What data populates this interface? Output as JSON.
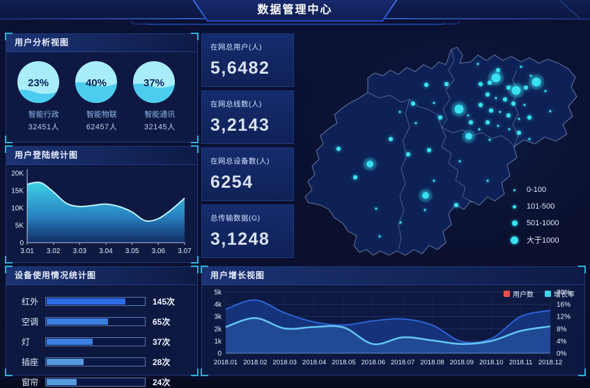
{
  "header": {
    "title": "数据管理中心"
  },
  "panels": {
    "user_analysis": {
      "title": "用户分析视图"
    },
    "login_stats": {
      "title": "用户登陆统计图"
    },
    "device_usage": {
      "title": "设备使用情况统计图"
    },
    "user_growth": {
      "title": "用户增长视图"
    }
  },
  "stats": {
    "items": [
      {
        "label": "在网总用户(人)",
        "value": "5,6482"
      },
      {
        "label": "在网总线数(人)",
        "value": "3,2143"
      },
      {
        "label": "在网总设备数(人)",
        "value": "6254"
      },
      {
        "label": "总传输数据(G)",
        "value": "3,1248"
      }
    ]
  },
  "map": {
    "dot_color": "#39e2f0",
    "land_color": "#0d2156",
    "border_color": "rgba(150,172,212,0.5)",
    "legend": [
      {
        "label": "0-100"
      },
      {
        "label": "101-500"
      },
      {
        "label": "501-1000"
      },
      {
        "label": "大于1000"
      }
    ],
    "dots": [
      [
        282,
        67,
        4
      ],
      [
        311,
        85,
        4
      ],
      [
        340,
        73,
        4
      ],
      [
        229,
        112,
        4
      ],
      [
        243,
        151,
        3
      ],
      [
        101,
        191,
        3
      ],
      [
        181,
        236,
        3
      ],
      [
        211,
        76,
        2
      ],
      [
        182,
        77,
        2
      ],
      [
        163,
        104,
        2
      ],
      [
        202,
        124,
        2
      ],
      [
        270,
        91,
        2
      ],
      [
        295,
        98,
        2
      ],
      [
        307,
        104,
        2
      ],
      [
        260,
        106,
        2
      ],
      [
        275,
        114,
        2
      ],
      [
        300,
        121,
        2
      ],
      [
        330,
        124,
        2
      ],
      [
        270,
        131,
        2
      ],
      [
        315,
        146,
        2
      ],
      [
        285,
        56,
        2
      ],
      [
        260,
        76,
        2
      ],
      [
        273,
        74,
        2
      ],
      [
        300,
        81,
        2
      ],
      [
        325,
        81,
        2
      ],
      [
        156,
        177,
        2
      ],
      [
        186,
        171,
        2
      ],
      [
        225,
        250,
        2
      ],
      [
        80,
        210,
        2
      ],
      [
        56,
        169,
        2
      ],
      [
        131,
        155,
        2
      ],
      [
        246,
        131,
        2
      ],
      [
        256,
        47,
        1
      ],
      [
        318,
        51,
        1
      ],
      [
        332,
        64,
        1
      ],
      [
        353,
        86,
        1
      ],
      [
        282,
        96,
        1
      ],
      [
        323,
        106,
        1
      ],
      [
        288,
        116,
        1
      ],
      [
        242,
        121,
        1
      ],
      [
        315,
        126,
        1
      ],
      [
        285,
        136,
        1
      ],
      [
        258,
        141,
        1
      ],
      [
        301,
        141,
        1
      ],
      [
        273,
        156,
        1
      ],
      [
        144,
        116,
        1
      ],
      [
        167,
        132,
        1
      ],
      [
        193,
        103,
        1
      ],
      [
        110,
        255,
        1
      ],
      [
        180,
        257,
        1
      ],
      [
        145,
        275,
        1
      ],
      [
        193,
        215,
        1
      ],
      [
        230,
        187,
        1
      ],
      [
        270,
        215,
        1
      ],
      [
        115,
        295,
        1
      ],
      [
        330,
        155,
        1
      ],
      [
        360,
        115,
        1
      ]
    ]
  },
  "chart_data": [
    {
      "type": "gauge",
      "title": "用户分析视图",
      "items": [
        {
          "percent": 23,
          "percent_label": "23%",
          "name": "智能行政",
          "count": "32451人"
        },
        {
          "percent": 40,
          "percent_label": "40%",
          "name": "智能物联",
          "count": "62457人"
        },
        {
          "percent": 37,
          "percent_label": "37%",
          "name": "智能通讯",
          "count": "32145人"
        }
      ],
      "colors": {
        "water": "#4ccdf0",
        "top": "#a9edfa",
        "text": "#0d2357"
      }
    },
    {
      "type": "area",
      "title": "用户登陆统计图",
      "x_ticks": [
        "3.01",
        "3.02",
        "3.03",
        "3.04",
        "3.05",
        "3.06",
        "3.07"
      ],
      "y_ticks": [
        "0",
        "5K",
        "10K",
        "15K",
        "20K"
      ],
      "ylim": [
        0,
        20000
      ],
      "values_k": [
        16.8,
        17.3,
        14.6,
        11.3,
        10.4,
        10.7,
        11.1,
        10.4,
        8.8,
        6.3,
        6.9,
        9.5,
        12.8
      ],
      "line_color": "#b9f1fb",
      "fill_top": "#41dcef",
      "fill_bottom": "#14306b"
    },
    {
      "type": "bar",
      "title": "设备使用情况统计图",
      "items": [
        {
          "label": "红外",
          "value": 145,
          "value_label": "145次",
          "pct": 81,
          "color": "#2f6ce8"
        },
        {
          "label": "空调",
          "value": 65,
          "value_label": "65次",
          "pct": 63,
          "color": "#3b80e0"
        },
        {
          "label": "灯",
          "value": 37,
          "value_label": "37次",
          "pct": 47,
          "color": "#3b80e0"
        },
        {
          "label": "插座",
          "value": 28,
          "value_label": "28次",
          "pct": 38,
          "color": "#569ade"
        },
        {
          "label": "窗帘",
          "value": 24,
          "value_label": "24次",
          "pct": 31,
          "color": "#569ade"
        }
      ]
    },
    {
      "type": "dual-area",
      "title": "用户增长视图",
      "categories": [
        "2018.01",
        "2018.02",
        "2018.03",
        "2018.04",
        "2018.05",
        "2018.06",
        "2018.07",
        "2018.08",
        "2018.09",
        "2018.10",
        "2018.11",
        "2018.12"
      ],
      "left_ticks": [
        "0",
        "1k",
        "2k",
        "3k",
        "4k",
        "5k"
      ],
      "right_ticks": [
        "0%",
        "4%",
        "8%",
        "12%",
        "16%",
        "20%"
      ],
      "left_max": 5,
      "right_max": 20,
      "series": [
        {
          "name": "用户数",
          "axis": "left",
          "legend_color": "#e84c4c",
          "line_color": "#2e63d6",
          "fill_color": "#16357f",
          "values": [
            3.6,
            4.35,
            3.3,
            2.55,
            2.3,
            2.65,
            2.8,
            2.3,
            0.95,
            1.2,
            3.0,
            3.5
          ]
        },
        {
          "name": "增长率",
          "axis": "right",
          "legend_color": "#3fd4e8",
          "line_color": "#64c6f4",
          "fill_color": "#2d62b0",
          "values": [
            8.6,
            11.5,
            8.1,
            8.6,
            8.4,
            3.0,
            5.2,
            4.2,
            3.0,
            4.0,
            7.3,
            8.8
          ]
        }
      ]
    }
  ]
}
